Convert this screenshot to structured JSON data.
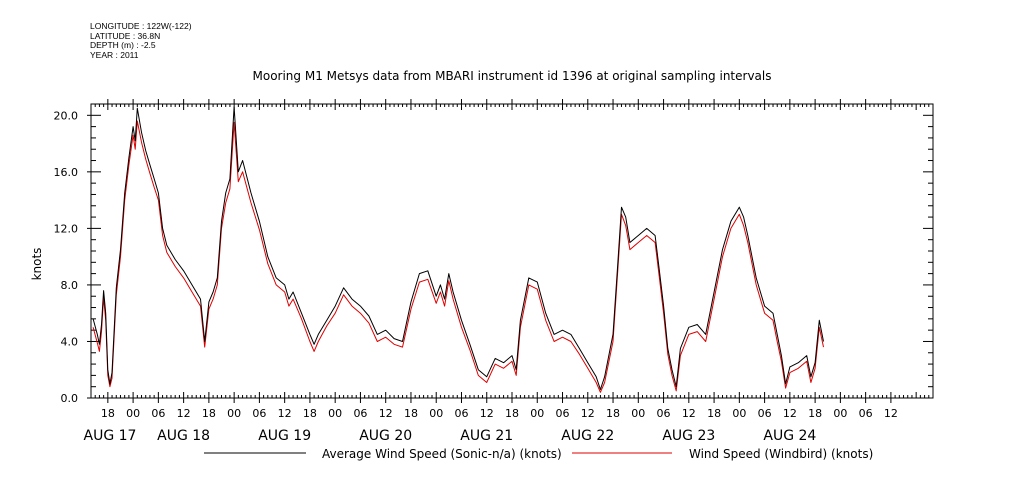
{
  "metadata": {
    "longitude": "LONGITUDE : 122W(-122)",
    "latitude": "LATITUDE : 36.8N",
    "depth": "DEPTH (m) : -2.5",
    "year": "YEAR : 2011"
  },
  "chart_data": {
    "type": "line",
    "title": "Mooring M1 Metsys data from MBARI instrument id 1396 at original sampling intervals",
    "ylabel": "knots",
    "xlabel": "",
    "ylim": [
      0,
      20.8
    ],
    "yticks": [
      "0.0",
      "4.0",
      "8.0",
      "12.0",
      "16.0",
      "20.0"
    ],
    "xlim_hours": [
      -10,
      190
    ],
    "hour_ticks": [
      {
        "h": -6,
        "label": "18"
      },
      {
        "h": 0,
        "label": "00"
      },
      {
        "h": 6,
        "label": "06"
      },
      {
        "h": 12,
        "label": "12"
      },
      {
        "h": 18,
        "label": "18"
      },
      {
        "h": 24,
        "label": "00"
      },
      {
        "h": 30,
        "label": "06"
      },
      {
        "h": 36,
        "label": "12"
      },
      {
        "h": 42,
        "label": "18"
      },
      {
        "h": 48,
        "label": "00"
      },
      {
        "h": 54,
        "label": "06"
      },
      {
        "h": 60,
        "label": "12"
      },
      {
        "h": 66,
        "label": "18"
      },
      {
        "h": 72,
        "label": "00"
      },
      {
        "h": 78,
        "label": "06"
      },
      {
        "h": 84,
        "label": "12"
      },
      {
        "h": 90,
        "label": "18"
      },
      {
        "h": 96,
        "label": "00"
      },
      {
        "h": 102,
        "label": "06"
      },
      {
        "h": 108,
        "label": "12"
      },
      {
        "h": 114,
        "label": "18"
      },
      {
        "h": 120,
        "label": "00"
      },
      {
        "h": 126,
        "label": "06"
      },
      {
        "h": 132,
        "label": "12"
      },
      {
        "h": 138,
        "label": "18"
      },
      {
        "h": 144,
        "label": "00"
      },
      {
        "h": 150,
        "label": "06"
      },
      {
        "h": 156,
        "label": "12"
      },
      {
        "h": 162,
        "label": "18"
      },
      {
        "h": 168,
        "label": "00"
      },
      {
        "h": 174,
        "label": "06"
      },
      {
        "h": 180,
        "label": "12"
      }
    ],
    "day_labels": [
      {
        "h": -12,
        "label": "AUG 17"
      },
      {
        "h": 12,
        "label": "AUG 18"
      },
      {
        "h": 36,
        "label": "AUG 19"
      },
      {
        "h": 60,
        "label": "AUG 20"
      },
      {
        "h": 84,
        "label": "AUG 21"
      },
      {
        "h": 108,
        "label": "AUG 22"
      },
      {
        "h": 132,
        "label": "AUG 23"
      },
      {
        "h": 156,
        "label": "AUG 24"
      }
    ],
    "series": [
      {
        "name": "Average Wind Speed (Sonic-n/a) (knots)",
        "color": "#000000",
        "points": [
          [
            -9.5,
            5.6
          ],
          [
            -8.5,
            4.5
          ],
          [
            -8,
            3.8
          ],
          [
            -7.5,
            5.2
          ],
          [
            -7,
            7.6
          ],
          [
            -6.5,
            6.0
          ],
          [
            -6,
            2.0
          ],
          [
            -5.5,
            1.0
          ],
          [
            -5,
            1.8
          ],
          [
            -4,
            7.8
          ],
          [
            -3,
            10.5
          ],
          [
            -2,
            14.5
          ],
          [
            -1,
            17.0
          ],
          [
            0,
            19.2
          ],
          [
            0.5,
            18.2
          ],
          [
            1,
            20.5
          ],
          [
            2,
            18.8
          ],
          [
            3,
            17.5
          ],
          [
            4,
            16.5
          ],
          [
            5,
            15.5
          ],
          [
            6,
            14.5
          ],
          [
            7,
            12.0
          ],
          [
            8,
            10.8
          ],
          [
            10,
            9.8
          ],
          [
            12,
            9.0
          ],
          [
            14,
            8.0
          ],
          [
            16,
            7.0
          ],
          [
            17,
            4.0
          ],
          [
            18,
            6.8
          ],
          [
            19,
            7.5
          ],
          [
            20,
            8.5
          ],
          [
            21,
            12.5
          ],
          [
            22,
            14.5
          ],
          [
            23,
            15.5
          ],
          [
            24,
            20.6
          ],
          [
            25,
            16.0
          ],
          [
            26,
            16.8
          ],
          [
            28,
            14.5
          ],
          [
            30,
            12.5
          ],
          [
            32,
            10.0
          ],
          [
            34,
            8.5
          ],
          [
            36,
            8.0
          ],
          [
            37,
            7.0
          ],
          [
            38,
            7.5
          ],
          [
            40,
            6.0
          ],
          [
            42,
            4.5
          ],
          [
            43,
            3.8
          ],
          [
            44,
            4.5
          ],
          [
            46,
            5.5
          ],
          [
            48,
            6.5
          ],
          [
            50,
            7.8
          ],
          [
            52,
            7.0
          ],
          [
            54,
            6.5
          ],
          [
            56,
            5.8
          ],
          [
            58,
            4.5
          ],
          [
            60,
            4.8
          ],
          [
            62,
            4.2
          ],
          [
            64,
            4.0
          ],
          [
            66,
            6.8
          ],
          [
            68,
            8.8
          ],
          [
            70,
            9.0
          ],
          [
            72,
            7.2
          ],
          [
            73,
            8.0
          ],
          [
            74,
            7.0
          ],
          [
            75,
            8.8
          ],
          [
            76,
            7.5
          ],
          [
            78,
            5.5
          ],
          [
            80,
            3.8
          ],
          [
            82,
            2.0
          ],
          [
            84,
            1.5
          ],
          [
            86,
            2.8
          ],
          [
            88,
            2.5
          ],
          [
            90,
            3.0
          ],
          [
            91,
            2.0
          ],
          [
            92,
            5.5
          ],
          [
            94,
            8.5
          ],
          [
            96,
            8.2
          ],
          [
            98,
            6.0
          ],
          [
            100,
            4.5
          ],
          [
            102,
            4.8
          ],
          [
            104,
            4.5
          ],
          [
            106,
            3.5
          ],
          [
            108,
            2.5
          ],
          [
            110,
            1.5
          ],
          [
            111,
            0.6
          ],
          [
            112,
            1.5
          ],
          [
            114,
            4.5
          ],
          [
            115,
            9.0
          ],
          [
            116,
            13.5
          ],
          [
            117,
            12.8
          ],
          [
            118,
            11.0
          ],
          [
            120,
            11.5
          ],
          [
            122,
            12.0
          ],
          [
            124,
            11.5
          ],
          [
            125,
            9.0
          ],
          [
            126,
            6.5
          ],
          [
            127,
            3.5
          ],
          [
            128,
            2.0
          ],
          [
            129,
            0.8
          ],
          [
            130,
            3.5
          ],
          [
            132,
            5.0
          ],
          [
            134,
            5.2
          ],
          [
            136,
            4.5
          ],
          [
            138,
            7.5
          ],
          [
            140,
            10.5
          ],
          [
            142,
            12.5
          ],
          [
            144,
            13.5
          ],
          [
            145,
            12.8
          ],
          [
            146,
            11.5
          ],
          [
            148,
            8.5
          ],
          [
            150,
            6.5
          ],
          [
            152,
            6.0
          ],
          [
            153,
            4.5
          ],
          [
            154,
            3.0
          ],
          [
            155,
            1.0
          ],
          [
            156,
            2.2
          ],
          [
            158,
            2.5
          ],
          [
            160,
            3.0
          ],
          [
            161,
            1.5
          ],
          [
            162,
            2.5
          ],
          [
            163,
            5.5
          ],
          [
            164,
            4.0
          ]
        ]
      },
      {
        "name": "Wind Speed (Windbird) (knots)",
        "color": "#e00000",
        "points": [
          [
            -9.5,
            5.0
          ],
          [
            -8.5,
            3.9
          ],
          [
            -8,
            3.3
          ],
          [
            -7.5,
            4.7
          ],
          [
            -7,
            7.1
          ],
          [
            -6.5,
            5.5
          ],
          [
            -6,
            1.6
          ],
          [
            -5.5,
            0.8
          ],
          [
            -5,
            1.4
          ],
          [
            -4,
            7.3
          ],
          [
            -3,
            10.0
          ],
          [
            -2,
            14.0
          ],
          [
            -1,
            16.5
          ],
          [
            0,
            18.6
          ],
          [
            0.5,
            17.6
          ],
          [
            1,
            19.6
          ],
          [
            2,
            18.1
          ],
          [
            3,
            16.9
          ],
          [
            4,
            15.9
          ],
          [
            5,
            14.9
          ],
          [
            6,
            14.0
          ],
          [
            7,
            11.5
          ],
          [
            8,
            10.3
          ],
          [
            10,
            9.3
          ],
          [
            12,
            8.5
          ],
          [
            14,
            7.5
          ],
          [
            16,
            6.5
          ],
          [
            17,
            3.6
          ],
          [
            18,
            6.3
          ],
          [
            19,
            7.0
          ],
          [
            20,
            8.0
          ],
          [
            21,
            12.0
          ],
          [
            22,
            13.8
          ],
          [
            23,
            14.8
          ],
          [
            24,
            19.5
          ],
          [
            25,
            15.3
          ],
          [
            26,
            16.0
          ],
          [
            28,
            13.8
          ],
          [
            30,
            11.9
          ],
          [
            32,
            9.5
          ],
          [
            34,
            8.0
          ],
          [
            36,
            7.5
          ],
          [
            37,
            6.5
          ],
          [
            38,
            7.0
          ],
          [
            40,
            5.6
          ],
          [
            42,
            4.0
          ],
          [
            43,
            3.3
          ],
          [
            44,
            4.0
          ],
          [
            46,
            5.1
          ],
          [
            48,
            6.0
          ],
          [
            50,
            7.3
          ],
          [
            52,
            6.5
          ],
          [
            54,
            6.0
          ],
          [
            56,
            5.3
          ],
          [
            58,
            4.0
          ],
          [
            60,
            4.3
          ],
          [
            62,
            3.8
          ],
          [
            64,
            3.6
          ],
          [
            66,
            6.3
          ],
          [
            68,
            8.2
          ],
          [
            70,
            8.4
          ],
          [
            72,
            6.7
          ],
          [
            73,
            7.5
          ],
          [
            74,
            6.5
          ],
          [
            75,
            8.3
          ],
          [
            76,
            7.0
          ],
          [
            78,
            5.0
          ],
          [
            80,
            3.4
          ],
          [
            82,
            1.6
          ],
          [
            84,
            1.1
          ],
          [
            86,
            2.4
          ],
          [
            88,
            2.1
          ],
          [
            90,
            2.6
          ],
          [
            91,
            1.6
          ],
          [
            92,
            5.0
          ],
          [
            94,
            8.0
          ],
          [
            96,
            7.7
          ],
          [
            98,
            5.5
          ],
          [
            100,
            4.0
          ],
          [
            102,
            4.3
          ],
          [
            104,
            4.0
          ],
          [
            106,
            3.1
          ],
          [
            108,
            2.1
          ],
          [
            110,
            1.1
          ],
          [
            111,
            0.4
          ],
          [
            112,
            1.1
          ],
          [
            114,
            4.0
          ],
          [
            115,
            8.5
          ],
          [
            116,
            13.0
          ],
          [
            117,
            12.2
          ],
          [
            118,
            10.5
          ],
          [
            120,
            11.0
          ],
          [
            122,
            11.5
          ],
          [
            124,
            11.0
          ],
          [
            125,
            8.5
          ],
          [
            126,
            6.0
          ],
          [
            127,
            3.1
          ],
          [
            128,
            1.6
          ],
          [
            129,
            0.5
          ],
          [
            130,
            3.0
          ],
          [
            132,
            4.5
          ],
          [
            134,
            4.7
          ],
          [
            136,
            4.0
          ],
          [
            138,
            7.0
          ],
          [
            140,
            10.0
          ],
          [
            142,
            12.0
          ],
          [
            144,
            13.0
          ],
          [
            145,
            12.2
          ],
          [
            146,
            11.0
          ],
          [
            148,
            8.0
          ],
          [
            150,
            6.0
          ],
          [
            152,
            5.5
          ],
          [
            153,
            4.0
          ],
          [
            154,
            2.6
          ],
          [
            155,
            0.7
          ],
          [
            156,
            1.8
          ],
          [
            158,
            2.1
          ],
          [
            160,
            2.6
          ],
          [
            161,
            1.1
          ],
          [
            162,
            2.1
          ],
          [
            163,
            5.0
          ],
          [
            164,
            3.6
          ]
        ]
      }
    ]
  }
}
